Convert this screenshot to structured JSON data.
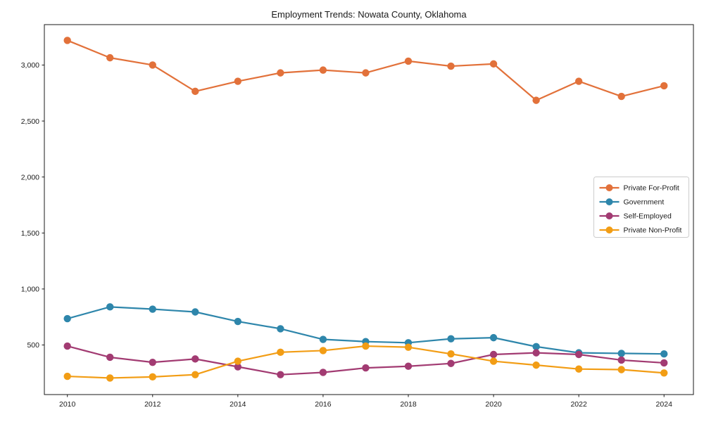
{
  "chart_data": {
    "type": "line",
    "title": "Employment Trends: Nowata County, Oklahoma",
    "xlabel": "",
    "ylabel": "",
    "grid": false,
    "legend_position": "right",
    "marker": "circle",
    "x": [
      2010,
      2011,
      2012,
      2013,
      2014,
      2015,
      2016,
      2017,
      2018,
      2019,
      2020,
      2021,
      2022,
      2023,
      2024
    ],
    "series": [
      {
        "name": "Private For-Profit",
        "color": "#E2713A",
        "values": [
          3220,
          3065,
          3000,
          2765,
          2855,
          2930,
          2955,
          2930,
          3035,
          2990,
          3010,
          2685,
          2855,
          2720,
          2815
        ]
      },
      {
        "name": "Government",
        "color": "#2E86AB",
        "values": [
          735,
          840,
          820,
          795,
          710,
          645,
          550,
          530,
          520,
          555,
          565,
          485,
          430,
          425,
          420
        ]
      },
      {
        "name": "Self-Employed",
        "color": "#A23B72",
        "values": [
          490,
          390,
          345,
          375,
          305,
          235,
          255,
          295,
          310,
          335,
          415,
          430,
          415,
          365,
          340
        ]
      },
      {
        "name": "Private Non-Profit",
        "color": "#F29D15",
        "values": [
          220,
          205,
          215,
          235,
          355,
          435,
          450,
          490,
          480,
          420,
          355,
          320,
          285,
          280,
          250
        ]
      }
    ],
    "x_ticks": [
      2010,
      2012,
      2014,
      2016,
      2018,
      2020,
      2022,
      2024
    ],
    "x_tick_labels": [
      "2010",
      "2012",
      "2014",
      "2016",
      "2018",
      "2020",
      "2022",
      "2024"
    ],
    "y_ticks": [
      500,
      1000,
      1500,
      2000,
      2500,
      3000
    ],
    "y_tick_labels": [
      "500",
      "1,000",
      "1,500",
      "2,000",
      "2,500",
      "3,000"
    ],
    "xlim": [
      2009.46,
      2024.69
    ],
    "ylim": [
      57,
      3361
    ],
    "axis_color": "#1a1a1a",
    "tick_label_color": "#1a1a1a",
    "legend_border_color": "#cccccc",
    "background_color": "#ffffff"
  }
}
